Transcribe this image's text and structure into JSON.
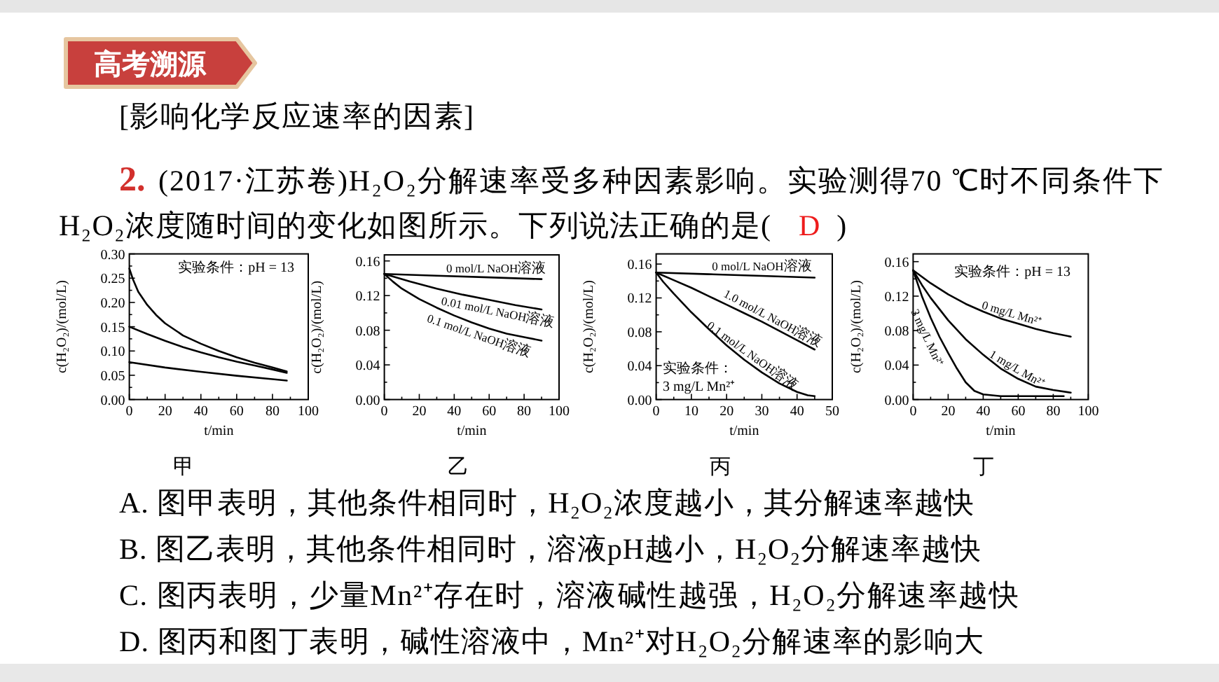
{
  "chart_data": [
    {
      "type": "other",
      "title": "高考溯源",
      "subtitle": "[影响化学反应速率的因素]",
      "annotations": [
        "2.",
        "(2017·江苏卷)H₂O₂分解速率受多种因素影响。实验测得70 ℃时不同条件下",
        "H₂O₂浓度随时间的变化如图所示。下列说法正确的是(",
        "D",
        ")"
      ]
    },
    {
      "type": "line",
      "title": "甲",
      "xlabel": "t/min",
      "ylabel": "c(H₂O₂)/(mol/L)",
      "xlim": [
        0,
        100
      ],
      "ylim": [
        0,
        0.3
      ],
      "xticks": [
        0,
        {
          "value": 10,
          "label": null
        },
        20,
        {
          "value": 30,
          "label": null
        },
        40,
        {
          "value": 50,
          "label": null
        },
        60,
        {
          "value": 70,
          "label": null
        },
        80,
        {
          "value": 90,
          "label": null
        },
        100
      ],
      "yticks": [
        {
          "value": 0,
          "label": "0.00"
        },
        {
          "value": 0.025,
          "label": null
        },
        0.05,
        {
          "value": 0.075,
          "label": null
        },
        {
          "value": 0.1,
          "label": "0.10"
        },
        {
          "value": 0.125,
          "label": null
        },
        0.15,
        {
          "value": 0.175,
          "label": null
        },
        {
          "value": 0.2,
          "label": "0.20"
        },
        {
          "value": 0.225,
          "label": null
        },
        0.25,
        {
          "value": 0.275,
          "label": null
        },
        {
          "value": 0.3,
          "label": "0.30"
        }
      ],
      "annotations": [
        "实验条件：pH = 13"
      ],
      "series": [
        {
          "color": "#000000",
          "x": [
            0,
            2,
            5,
            10,
            15,
            20,
            30,
            40,
            50,
            60,
            70,
            80,
            88
          ],
          "values": [
            0.27,
            0.248,
            0.222,
            0.195,
            0.174,
            0.157,
            0.132,
            0.115,
            0.1,
            0.087,
            0.076,
            0.066,
            0.058
          ]
        },
        {
          "color": "#000000",
          "x": [
            0,
            10,
            20,
            30,
            40,
            50,
            60,
            70,
            80,
            88
          ],
          "values": [
            0.15,
            0.135,
            0.121,
            0.108,
            0.097,
            0.087,
            0.078,
            0.07,
            0.062,
            0.055
          ]
        },
        {
          "color": "#000000",
          "x": [
            0,
            20,
            40,
            60,
            80,
            88
          ],
          "values": [
            0.077,
            0.066,
            0.057,
            0.049,
            0.042,
            0.039
          ]
        }
      ]
    },
    {
      "type": "line",
      "title": "乙",
      "xlabel": "t/min",
      "ylabel": "c(H₂O₂)/(mol/L)",
      "xlim": [
        0,
        100
      ],
      "ylim": [
        0,
        0.167
      ],
      "xticks": [
        0,
        {
          "value": 10,
          "label": null
        },
        20,
        {
          "value": 30,
          "label": null
        },
        40,
        {
          "value": 50,
          "label": null
        },
        60,
        {
          "value": 70,
          "label": null
        },
        80,
        {
          "value": 90,
          "label": null
        },
        100
      ],
      "yticks": [
        {
          "value": 0,
          "label": "0.00"
        },
        {
          "value": 0.02,
          "label": null
        },
        0.04,
        {
          "value": 0.06,
          "label": null
        },
        0.08,
        {
          "value": 0.1,
          "label": null
        },
        0.12,
        {
          "value": 0.14,
          "label": null
        },
        0.16
      ],
      "series": [
        {
          "name": "0 mol/L NaOH溶液",
          "color": "#000000",
          "x": [
            0,
            30,
            60,
            90
          ],
          "values": [
            0.145,
            0.143,
            0.141,
            0.139
          ]
        },
        {
          "name": "0.01 mol/L NaOH溶液",
          "color": "#000000",
          "x": [
            0,
            15,
            30,
            45,
            60,
            75,
            90
          ],
          "values": [
            0.145,
            0.136,
            0.128,
            0.121,
            0.115,
            0.109,
            0.104
          ]
        },
        {
          "name": "0.1 mol/L NaOH溶液",
          "color": "#000000",
          "x": [
            0,
            5,
            10,
            20,
            30,
            40,
            50,
            60,
            70,
            80,
            90
          ],
          "values": [
            0.145,
            0.136,
            0.128,
            0.116,
            0.106,
            0.097,
            0.089,
            0.082,
            0.076,
            0.072,
            0.068
          ]
        }
      ]
    },
    {
      "type": "line",
      "title": "丙",
      "xlabel": "t/min",
      "ylabel": "c(H₂O₂)/(mol/L)",
      "xlim": [
        0,
        50
      ],
      "ylim": [
        0,
        0.172
      ],
      "xticks": [
        0,
        {
          "value": 5,
          "label": null
        },
        10,
        {
          "value": 15,
          "label": null
        },
        20,
        {
          "value": 25,
          "label": null
        },
        30,
        {
          "value": 35,
          "label": null
        },
        40,
        {
          "value": 45,
          "label": null
        },
        50
      ],
      "yticks": [
        {
          "value": 0,
          "label": "0.00"
        },
        {
          "value": 0.02,
          "label": null
        },
        0.04,
        {
          "value": 0.06,
          "label": null
        },
        0.08,
        {
          "value": 0.1,
          "label": null
        },
        0.12,
        {
          "value": 0.14,
          "label": null
        },
        0.16
      ],
      "annotations": [
        "实验条件：",
        "3 mg/L Mn²⁺"
      ],
      "series": [
        {
          "name": "0 mol/L NaOH溶液",
          "color": "#000000",
          "x": [
            0,
            15,
            30,
            45
          ],
          "values": [
            0.15,
            0.148,
            0.146,
            0.144
          ]
        },
        {
          "name": "1.0 mol/L NaOH溶液",
          "color": "#000000",
          "x": [
            0,
            5,
            10,
            15,
            20,
            25,
            30,
            35,
            40,
            45
          ],
          "values": [
            0.15,
            0.141,
            0.132,
            0.122,
            0.112,
            0.102,
            0.092,
            0.081,
            0.07,
            0.059
          ]
        },
        {
          "name": "0.1 mol/L NaOH溶液",
          "color": "#000000",
          "x": [
            0,
            2,
            5,
            10,
            15,
            20,
            25,
            30,
            35,
            40,
            43,
            45
          ],
          "values": [
            0.15,
            0.139,
            0.125,
            0.103,
            0.083,
            0.064,
            0.047,
            0.032,
            0.019,
            0.009,
            0.005,
            0.004
          ]
        }
      ]
    },
    {
      "type": "line",
      "title": "丁",
      "xlabel": "t/min",
      "ylabel": "c(H₂O₂)/(mol/L)",
      "xlim": [
        0,
        100
      ],
      "ylim": [
        0,
        0.169
      ],
      "xticks": [
        0,
        {
          "value": 10,
          "label": null
        },
        20,
        {
          "value": 30,
          "label": null
        },
        40,
        {
          "value": 50,
          "label": null
        },
        60,
        {
          "value": 70,
          "label": null
        },
        80,
        {
          "value": 90,
          "label": null
        },
        100
      ],
      "yticks": [
        {
          "value": 0,
          "label": "0.00"
        },
        {
          "value": 0.02,
          "label": null
        },
        0.04,
        {
          "value": 0.06,
          "label": null
        },
        0.08,
        {
          "value": 0.1,
          "label": null
        },
        0.12,
        {
          "value": 0.14,
          "label": null
        },
        0.16
      ],
      "annotations": [
        "实验条件：pH = 13"
      ],
      "series": [
        {
          "name": "0 mg/L Mn²⁺",
          "color": "#000000",
          "x": [
            0,
            10,
            20,
            30,
            40,
            50,
            60,
            70,
            80,
            90
          ],
          "values": [
            0.15,
            0.135,
            0.122,
            0.111,
            0.102,
            0.094,
            0.088,
            0.082,
            0.077,
            0.073
          ]
        },
        {
          "name": "1 mg/L Mn²⁺",
          "color": "#000000",
          "x": [
            0,
            5,
            10,
            20,
            30,
            40,
            50,
            60,
            70,
            80,
            90
          ],
          "values": [
            0.15,
            0.133,
            0.118,
            0.092,
            0.07,
            0.052,
            0.036,
            0.024,
            0.015,
            0.011,
            0.008
          ]
        },
        {
          "name": "3 mg/L Mn²⁺",
          "color": "#000000",
          "x": [
            0,
            5,
            10,
            15,
            20,
            25,
            30,
            35,
            40,
            50,
            60,
            70,
            80,
            86
          ],
          "values": [
            0.15,
            0.12,
            0.095,
            0.073,
            0.054,
            0.036,
            0.02,
            0.01,
            0.006,
            0.004,
            0.004,
            0.004,
            0.004,
            0.004
          ]
        }
      ]
    },
    {
      "type": "other",
      "annotations": [
        "A. 图甲表明，其他条件相同时，H₂O₂浓度越小，其分解速率越快",
        "B. 图乙表明，其他条件相同时，溶液pH越小，H₂O₂分解速率越快",
        "C. 图丙表明，少量Mn²⁺存在时，溶液碱性越强，H₂O₂分解速率越快",
        "D. 图丙和图丁表明，碱性溶液中，Mn²⁺对H₂O₂分解速率的影响大"
      ]
    }
  ]
}
